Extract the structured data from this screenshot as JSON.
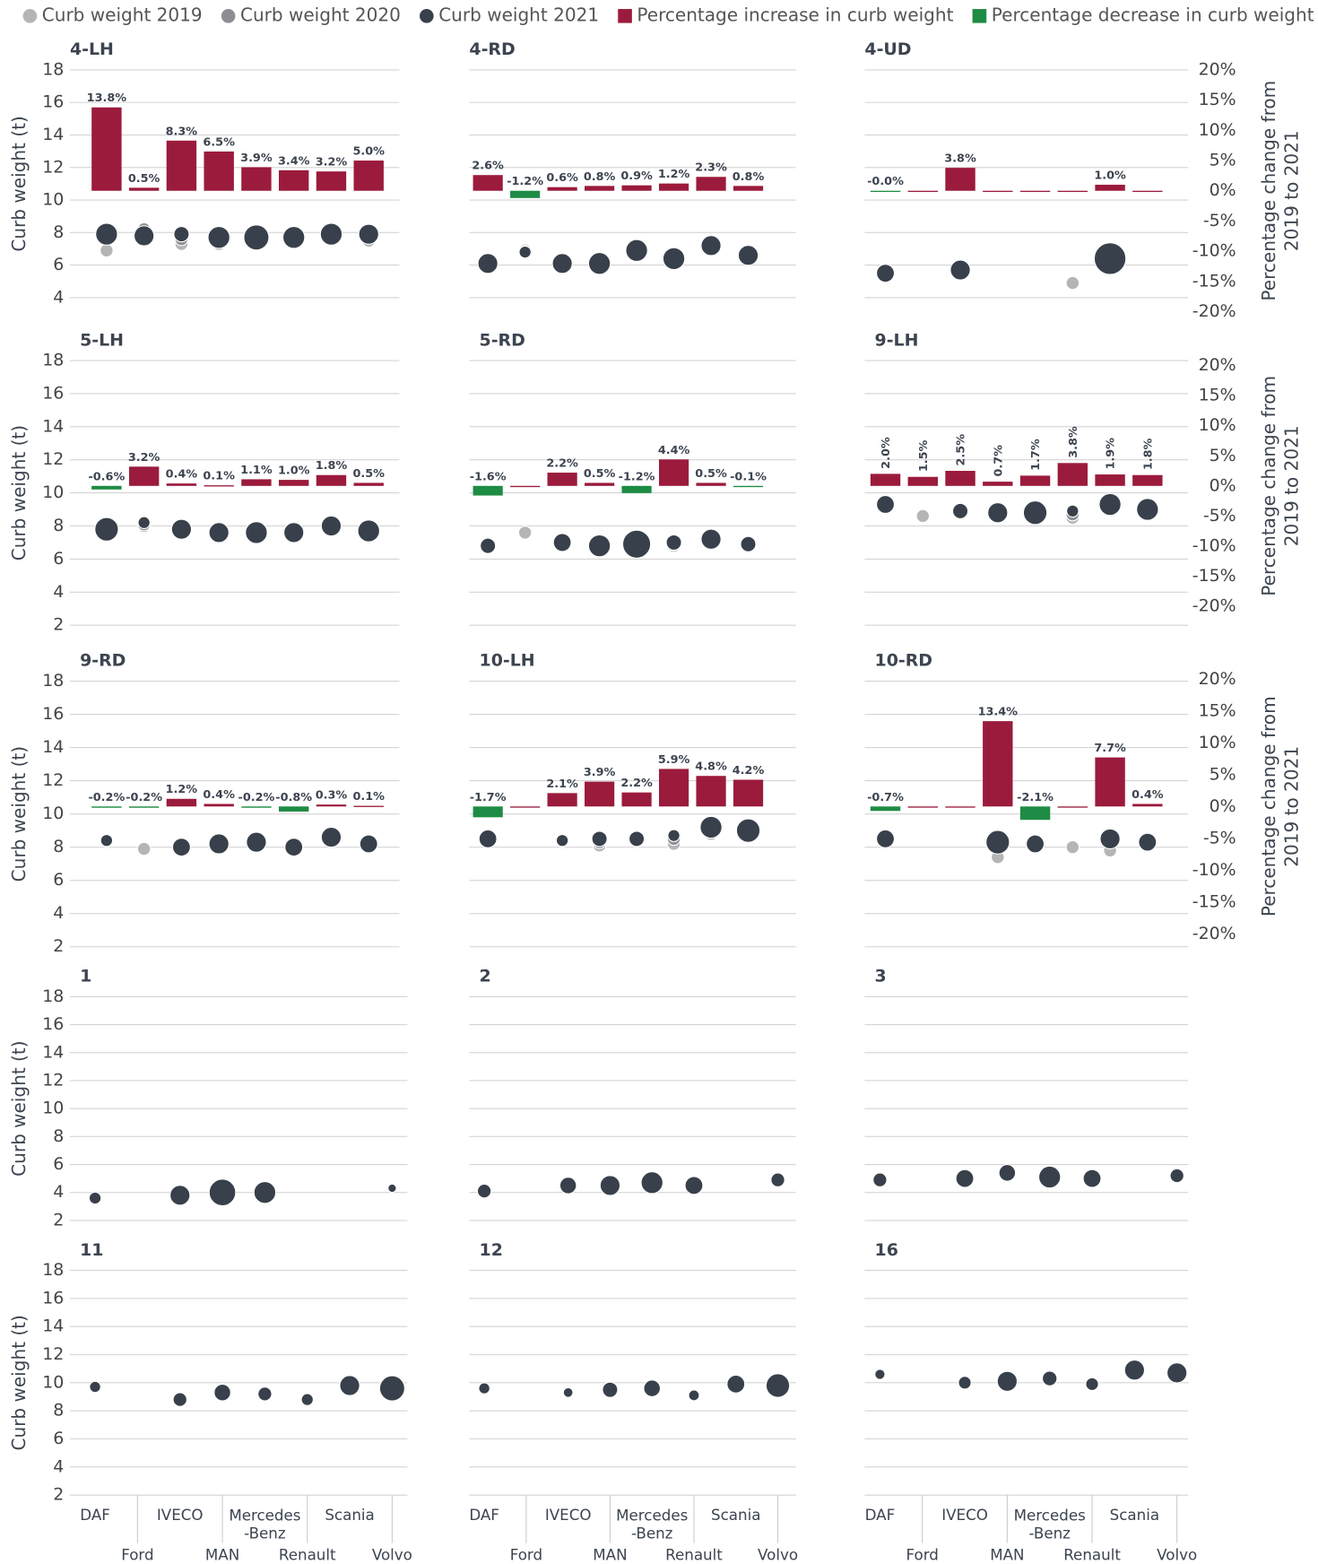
{
  "legend": [
    {
      "name": "Curb weight 2019",
      "color": "#b5b5b7",
      "shape": "circle"
    },
    {
      "name": "Curb weight 2020",
      "color": "#8d8e93",
      "shape": "circle"
    },
    {
      "name": "Curb weight 2021",
      "color": "#38404b",
      "shape": "circle"
    },
    {
      "name": "Percentage increase in curb weight",
      "color": "#9b1b3c",
      "shape": "square"
    },
    {
      "name": "Percentage decrease in curb weight",
      "color": "#1e8c44",
      "shape": "square"
    }
  ],
  "categories": [
    "DAF",
    "Ford",
    "IVECO",
    "MAN",
    "Mercedes-Benz",
    "Renault",
    "Scania",
    "Volvo"
  ],
  "chart_data": [
    {
      "type": "bubble",
      "title": "4-LH",
      "ylabel": "Curb weight (t)",
      "ylim": [
        4,
        18
      ],
      "yticks": [
        4,
        6,
        8,
        10,
        12,
        14,
        16,
        18
      ],
      "w2019": [
        6.9,
        7.8,
        7.3,
        7.3,
        7.4,
        7.4,
        7.7,
        7.5
      ],
      "w2020": [
        7.8,
        8.2,
        7.6,
        7.6,
        7.6,
        7.6,
        8.0,
        7.8
      ],
      "w2021": [
        7.9,
        7.8,
        7.9,
        7.7,
        7.7,
        7.7,
        7.9,
        7.9
      ],
      "sizes": [
        5,
        4,
        2,
        5,
        7,
        5,
        5,
        4
      ],
      "pct": [
        13.8,
        0.5,
        8.3,
        6.5,
        3.9,
        3.4,
        3.2,
        5.0
      ],
      "pct_labels": [
        "13.8%",
        "0.5%",
        "8.3%",
        "6.5%",
        "3.9%",
        "3.4%",
        "3.2%",
        "5.0%"
      ],
      "y2lim": [
        -20,
        20
      ],
      "y2ticks": [
        {
          "value": -20,
          "label": "-20%"
        },
        {
          "value": -15,
          "label": "-15%"
        },
        {
          "value": -10,
          "label": "-10%"
        },
        {
          "value": -5,
          "label": "-5%"
        },
        {
          "value": 0,
          "label": "0%"
        },
        {
          "value": 5,
          "label": "5%"
        },
        {
          "value": 10,
          "label": "10%"
        },
        {
          "value": 15,
          "label": "15%"
        },
        {
          "value": 20,
          "label": "20%"
        }
      ]
    },
    {
      "type": "bubble",
      "title": "4-RD",
      "ylim": [
        4,
        18
      ],
      "yticks": [
        4,
        6,
        8,
        10,
        12,
        14,
        16,
        18
      ],
      "w2019": [
        6.0,
        6.9,
        6.1,
        6.0,
        6.9,
        6.3,
        7.1,
        6.6
      ],
      "w2020": [
        6.1,
        6.8,
        6.1,
        6.1,
        6.9,
        6.4,
        7.2,
        6.6
      ],
      "w2021": [
        6.1,
        6.8,
        6.1,
        6.1,
        6.9,
        6.4,
        7.2,
        6.6
      ],
      "sizes": [
        4,
        1,
        4,
        5,
        5,
        5,
        4,
        4
      ],
      "pct": [
        2.6,
        -1.2,
        0.6,
        0.8,
        0.9,
        1.2,
        2.3,
        0.8
      ],
      "pct_labels": [
        "2.6%",
        "-1.2%",
        "0.6%",
        "0.8%",
        "0.9%",
        "1.2%",
        "2.3%",
        "0.8%"
      ],
      "y2lim": [
        -20,
        20
      ],
      "y2ticks": [
        {
          "value": -20,
          "label": "-20%"
        },
        {
          "value": -15,
          "label": "-15%"
        },
        {
          "value": -10,
          "label": "-10%"
        },
        {
          "value": -5,
          "label": "-5%"
        },
        {
          "value": 0,
          "label": "0%"
        },
        {
          "value": 5,
          "label": "5%"
        },
        {
          "value": 10,
          "label": "10%"
        },
        {
          "value": 15,
          "label": "15%"
        },
        {
          "value": 20,
          "label": "20%"
        }
      ]
    },
    {
      "type": "bubble",
      "title": "4-UD",
      "y2label": [
        "Percentage change from",
        "2019 to 2021"
      ],
      "ylim": [
        4,
        18
      ],
      "yticks": [
        4,
        6,
        8,
        10,
        12,
        14,
        16,
        18
      ],
      "w2019": [
        5.6,
        null,
        5.6,
        null,
        null,
        4.9,
        6.4,
        null
      ],
      "w2020": [
        5.7,
        null,
        5.7,
        null,
        null,
        null,
        6.4,
        null
      ],
      "w2021": [
        5.5,
        null,
        5.7,
        null,
        null,
        null,
        6.4,
        null
      ],
      "sizes": [
        3,
        null,
        4,
        null,
        null,
        null,
        12,
        null
      ],
      "pct": [
        -0.04,
        0,
        3.8,
        0,
        0,
        0,
        1.0,
        0
      ],
      "pct_labels": [
        "-0.0%",
        null,
        "3.8%",
        null,
        null,
        null,
        "1.0%",
        null
      ],
      "y2lim": [
        -20,
        20
      ],
      "y2ticks": [
        {
          "value": -20,
          "label": "-20%"
        },
        {
          "value": -15,
          "label": "-15%"
        },
        {
          "value": -10,
          "label": "-10%"
        },
        {
          "value": -5,
          "label": "-5%"
        },
        {
          "value": 0,
          "label": "0%"
        },
        {
          "value": 5,
          "label": "5%"
        },
        {
          "value": 10,
          "label": "10%"
        },
        {
          "value": 15,
          "label": "15%"
        },
        {
          "value": 20,
          "label": "20%"
        }
      ]
    },
    {
      "type": "bubble",
      "title": "5-LH",
      "ylabel": "Curb weight (t)",
      "ylim": [
        2,
        18
      ],
      "yticks": [
        2,
        4,
        6,
        8,
        10,
        12,
        14,
        16,
        18
      ],
      "w2019": [
        7.8,
        8.0,
        7.9,
        7.5,
        7.5,
        7.6,
        7.8,
        7.6
      ],
      "w2020": [
        7.8,
        8.1,
        7.8,
        7.6,
        7.6,
        7.6,
        7.9,
        7.7
      ],
      "w2021": [
        7.8,
        8.2,
        7.8,
        7.6,
        7.6,
        7.6,
        8.0,
        7.7
      ],
      "sizes": [
        6,
        1,
        4,
        4,
        5,
        4,
        4,
        5
      ],
      "pct": [
        -0.6,
        3.2,
        0.4,
        0.1,
        1.1,
        1.0,
        1.8,
        0.5
      ],
      "pct_labels": [
        "-0.6%",
        "3.2%",
        "0.4%",
        "0.1%",
        "1.1%",
        "1.0%",
        "1.8%",
        "0.5%"
      ],
      "y2lim": [
        -20,
        20
      ],
      "y2ticks": [
        {
          "value": -20,
          "label": "-20%"
        },
        {
          "value": -15,
          "label": "-15%"
        },
        {
          "value": -10,
          "label": "-10%"
        },
        {
          "value": -5,
          "label": "-5%"
        },
        {
          "value": 0,
          "label": "0%"
        },
        {
          "value": 5,
          "label": "5%"
        },
        {
          "value": 10,
          "label": "10%"
        },
        {
          "value": 15,
          "label": "15%"
        },
        {
          "value": 20,
          "label": "20%"
        }
      ]
    },
    {
      "type": "bubble",
      "title": "5-RD",
      "ylim": [
        2,
        18
      ],
      "yticks": [
        2,
        4,
        6,
        8,
        10,
        12,
        14,
        16,
        18
      ],
      "w2019": [
        6.9,
        7.6,
        7.0,
        6.8,
        6.9,
        6.8,
        7.3,
        6.9
      ],
      "w2020": [
        6.9,
        null,
        7.0,
        6.9,
        6.9,
        6.9,
        7.3,
        6.9
      ],
      "w2021": [
        6.8,
        null,
        7.0,
        6.8,
        6.9,
        7.0,
        7.2,
        6.9
      ],
      "sizes": [
        2,
        null,
        3,
        5,
        9,
        2,
        4,
        2
      ],
      "pct": [
        -1.6,
        0,
        2.2,
        0.5,
        -1.2,
        4.4,
        0.5,
        -0.1
      ],
      "pct_labels": [
        "-1.6%",
        null,
        "2.2%",
        "0.5%",
        "-1.2%",
        "4.4%",
        "0.5%",
        "-0.1%"
      ],
      "y2lim": [
        -20,
        20
      ],
      "y2ticks": [
        {
          "value": -20,
          "label": "-20%"
        },
        {
          "value": -15,
          "label": "-15%"
        },
        {
          "value": -10,
          "label": "-10%"
        },
        {
          "value": -5,
          "label": "-5%"
        },
        {
          "value": 0,
          "label": "0%"
        },
        {
          "value": 5,
          "label": "5%"
        },
        {
          "value": 10,
          "label": "10%"
        },
        {
          "value": 15,
          "label": "15%"
        },
        {
          "value": 20,
          "label": "20%"
        }
      ]
    },
    {
      "type": "bubble",
      "title": "9-LH",
      "y2label": [
        "Percentage change from",
        "2019 to 2021"
      ],
      "rotate_labels": true,
      "ylim": [
        2,
        18
      ],
      "yticks": [
        2,
        4,
        6,
        8,
        10,
        12,
        14,
        16,
        18
      ],
      "w2019": [
        9.1,
        8.6,
        8.8,
        8.7,
        8.7,
        8.5,
        9.2,
        8.9
      ],
      "w2020": [
        9.2,
        null,
        8.9,
        8.8,
        8.8,
        8.7,
        9.3,
        9.0
      ],
      "w2021": [
        9.3,
        null,
        8.9,
        8.8,
        8.8,
        8.9,
        9.3,
        9.0
      ],
      "sizes": [
        3,
        null,
        2,
        4,
        6,
        1,
        5,
        5
      ],
      "pct": [
        2.0,
        1.5,
        2.5,
        0.7,
        1.7,
        3.8,
        1.9,
        1.8
      ],
      "pct_labels": [
        "2.0%",
        "1.5%",
        "2.5%",
        "0.7%",
        "1.7%",
        "3.8%",
        "1.9%",
        "1.8%"
      ],
      "y2lim": [
        -20,
        20
      ],
      "y2ticks": [
        {
          "value": -20,
          "label": "-20%"
        },
        {
          "value": -15,
          "label": "-15%"
        },
        {
          "value": -10,
          "label": "-10%"
        },
        {
          "value": -5,
          "label": "-5%"
        },
        {
          "value": 0,
          "label": "0%"
        },
        {
          "value": 5,
          "label": "5%"
        },
        {
          "value": 10,
          "label": "10%"
        },
        {
          "value": 15,
          "label": "15%"
        },
        {
          "value": 20,
          "label": "20%"
        }
      ]
    },
    {
      "type": "bubble",
      "title": "9-RD",
      "ylabel": "Curb weight (t)",
      "ylim": [
        2,
        18
      ],
      "yticks": [
        2,
        4,
        6,
        8,
        10,
        12,
        14,
        16,
        18
      ],
      "w2019": [
        8.4,
        7.9,
        7.9,
        8.1,
        8.2,
        8.0,
        8.6,
        8.1
      ],
      "w2020": [
        8.4,
        null,
        8.0,
        8.2,
        8.3,
        8.0,
        8.6,
        8.2
      ],
      "w2021": [
        8.4,
        null,
        8.0,
        8.2,
        8.3,
        8.0,
        8.6,
        8.2
      ],
      "sizes": [
        1,
        null,
        3,
        4,
        4,
        3,
        4,
        3
      ],
      "pct": [
        -0.2,
        -0.2,
        1.2,
        0.4,
        -0.2,
        -0.8,
        0.3,
        0.1
      ],
      "pct_labels": [
        "-0.2%",
        "-0.2%",
        "1.2%",
        "0.4%",
        "-0.2%",
        "-0.8%",
        "0.3%",
        "0.1%"
      ],
      "y2lim": [
        -20,
        20
      ],
      "y2ticks": [
        {
          "value": -20,
          "label": "-20%"
        },
        {
          "value": -15,
          "label": "-15%"
        },
        {
          "value": -10,
          "label": "-10%"
        },
        {
          "value": -5,
          "label": "-5%"
        },
        {
          "value": 0,
          "label": "0%"
        },
        {
          "value": 5,
          "label": "5%"
        },
        {
          "value": 10,
          "label": "10%"
        },
        {
          "value": 15,
          "label": "15%"
        },
        {
          "value": 20,
          "label": "20%"
        }
      ]
    },
    {
      "type": "bubble",
      "title": "10-LH",
      "ylim": [
        2,
        18
      ],
      "yticks": [
        2,
        4,
        6,
        8,
        10,
        12,
        14,
        16,
        18
      ],
      "w2019": [
        8.7,
        null,
        8.4,
        8.1,
        8.4,
        8.2,
        8.8,
        8.7
      ],
      "w2020": [
        8.6,
        null,
        8.4,
        8.3,
        8.5,
        8.5,
        9.0,
        8.8
      ],
      "w2021": [
        8.5,
        null,
        8.4,
        8.5,
        8.5,
        8.7,
        9.2,
        9.0
      ],
      "sizes": [
        3,
        null,
        1,
        2,
        2,
        1,
        5,
        6
      ],
      "pct": [
        -1.7,
        0,
        2.1,
        3.9,
        2.2,
        5.9,
        4.8,
        4.2
      ],
      "pct_labels": [
        "-1.7%",
        null,
        "2.1%",
        "3.9%",
        "2.2%",
        "5.9%",
        "4.8%",
        "4.2%"
      ],
      "y2lim": [
        -20,
        20
      ],
      "y2ticks": [
        {
          "value": -20,
          "label": "-20%"
        },
        {
          "value": -15,
          "label": "-15%"
        },
        {
          "value": -10,
          "label": "-10%"
        },
        {
          "value": -5,
          "label": "-5%"
        },
        {
          "value": 0,
          "label": "0%"
        },
        {
          "value": 5,
          "label": "5%"
        },
        {
          "value": 10,
          "label": "10%"
        },
        {
          "value": 15,
          "label": "15%"
        },
        {
          "value": 20,
          "label": "20%"
        }
      ]
    },
    {
      "type": "bubble",
      "title": "10-RD",
      "y2label": [
        "Percentage change from",
        "2019 to 2021"
      ],
      "ylim": [
        2,
        18
      ],
      "yticks": [
        2,
        4,
        6,
        8,
        10,
        12,
        14,
        16,
        18
      ],
      "w2019": [
        8.5,
        null,
        null,
        7.4,
        8.4,
        8.0,
        7.8,
        8.3
      ],
      "w2020": [
        8.5,
        null,
        null,
        8.1,
        8.4,
        null,
        8.6,
        8.3
      ],
      "w2021": [
        8.5,
        null,
        null,
        8.3,
        8.2,
        null,
        8.5,
        8.3
      ],
      "sizes": [
        3,
        null,
        null,
        6,
        3,
        null,
        4,
        3
      ],
      "pct": [
        -0.7,
        0,
        0,
        13.4,
        -2.1,
        0,
        7.7,
        0.4
      ],
      "pct_labels": [
        "-0.7%",
        null,
        null,
        "13.4%",
        "-2.1%",
        null,
        "7.7%",
        "0.4%"
      ],
      "y2lim": [
        -20,
        20
      ],
      "y2ticks": [
        {
          "value": -20,
          "label": "-20%"
        },
        {
          "value": -15,
          "label": "-15%"
        },
        {
          "value": -10,
          "label": "-10%"
        },
        {
          "value": -5,
          "label": "-5%"
        },
        {
          "value": 0,
          "label": "0%"
        },
        {
          "value": 5,
          "label": "5%"
        },
        {
          "value": 10,
          "label": "10%"
        },
        {
          "value": 15,
          "label": "15%"
        },
        {
          "value": 20,
          "label": "20%"
        }
      ]
    },
    {
      "type": "bubble",
      "title": "1",
      "ylabel": "Curb weight (t)",
      "ylim": [
        2,
        18
      ],
      "yticks": [
        2,
        4,
        6,
        8,
        10,
        12,
        14,
        16,
        18
      ],
      "w2021": [
        3.6,
        null,
        3.8,
        4.0,
        4.0,
        null,
        null,
        4.3
      ],
      "sizes": [
        1,
        null,
        4,
        8,
        5,
        null,
        null,
        0.3
      ]
    },
    {
      "type": "bubble",
      "title": "2",
      "ylim": [
        2,
        18
      ],
      "yticks": [
        2,
        4,
        6,
        8,
        10,
        12,
        14,
        16,
        18
      ],
      "w2021": [
        4.1,
        null,
        4.5,
        4.5,
        4.7,
        4.5,
        null,
        4.9
      ],
      "sizes": [
        1.5,
        null,
        2.5,
        4,
        5,
        3,
        null,
        1.5
      ]
    },
    {
      "type": "bubble",
      "title": "3",
      "ylim": [
        2,
        18
      ],
      "yticks": [
        2,
        4,
        6,
        8,
        10,
        12,
        14,
        16,
        18
      ],
      "w2021": [
        4.9,
        null,
        5.0,
        5.4,
        5.1,
        5.0,
        null,
        5.2
      ],
      "sizes": [
        1.5,
        null,
        3,
        2.5,
        5,
        3,
        null,
        1.5
      ]
    },
    {
      "type": "bubble",
      "title": "11",
      "ylabel": "Curb weight (t)",
      "ylim": [
        2,
        18
      ],
      "yticks": [
        2,
        4,
        6,
        8,
        10,
        12,
        14,
        16,
        18
      ],
      "w2021": [
        9.7,
        null,
        8.8,
        9.3,
        9.2,
        8.8,
        9.8,
        9.6
      ],
      "sizes": [
        0.8,
        null,
        1.5,
        2.5,
        1.5,
        1,
        4,
        7
      ]
    },
    {
      "type": "bubble",
      "title": "12",
      "ylim": [
        2,
        18
      ],
      "yticks": [
        2,
        4,
        6,
        8,
        10,
        12,
        14,
        16,
        18
      ],
      "w2021": [
        9.6,
        null,
        9.3,
        9.5,
        9.6,
        9.1,
        9.9,
        9.8
      ],
      "sizes": [
        0.8,
        null,
        0.5,
        2,
        2.5,
        0.7,
        3,
        6
      ]
    },
    {
      "type": "bubble",
      "title": "16",
      "ylim": [
        2,
        18
      ],
      "yticks": [
        2,
        4,
        6,
        8,
        10,
        12,
        14,
        16,
        18
      ],
      "w2021": [
        10.6,
        null,
        10.0,
        10.1,
        10.3,
        9.9,
        10.9,
        10.7
      ],
      "sizes": [
        0.6,
        null,
        1.2,
        4,
        1.8,
        1.2,
        4,
        4
      ]
    }
  ]
}
